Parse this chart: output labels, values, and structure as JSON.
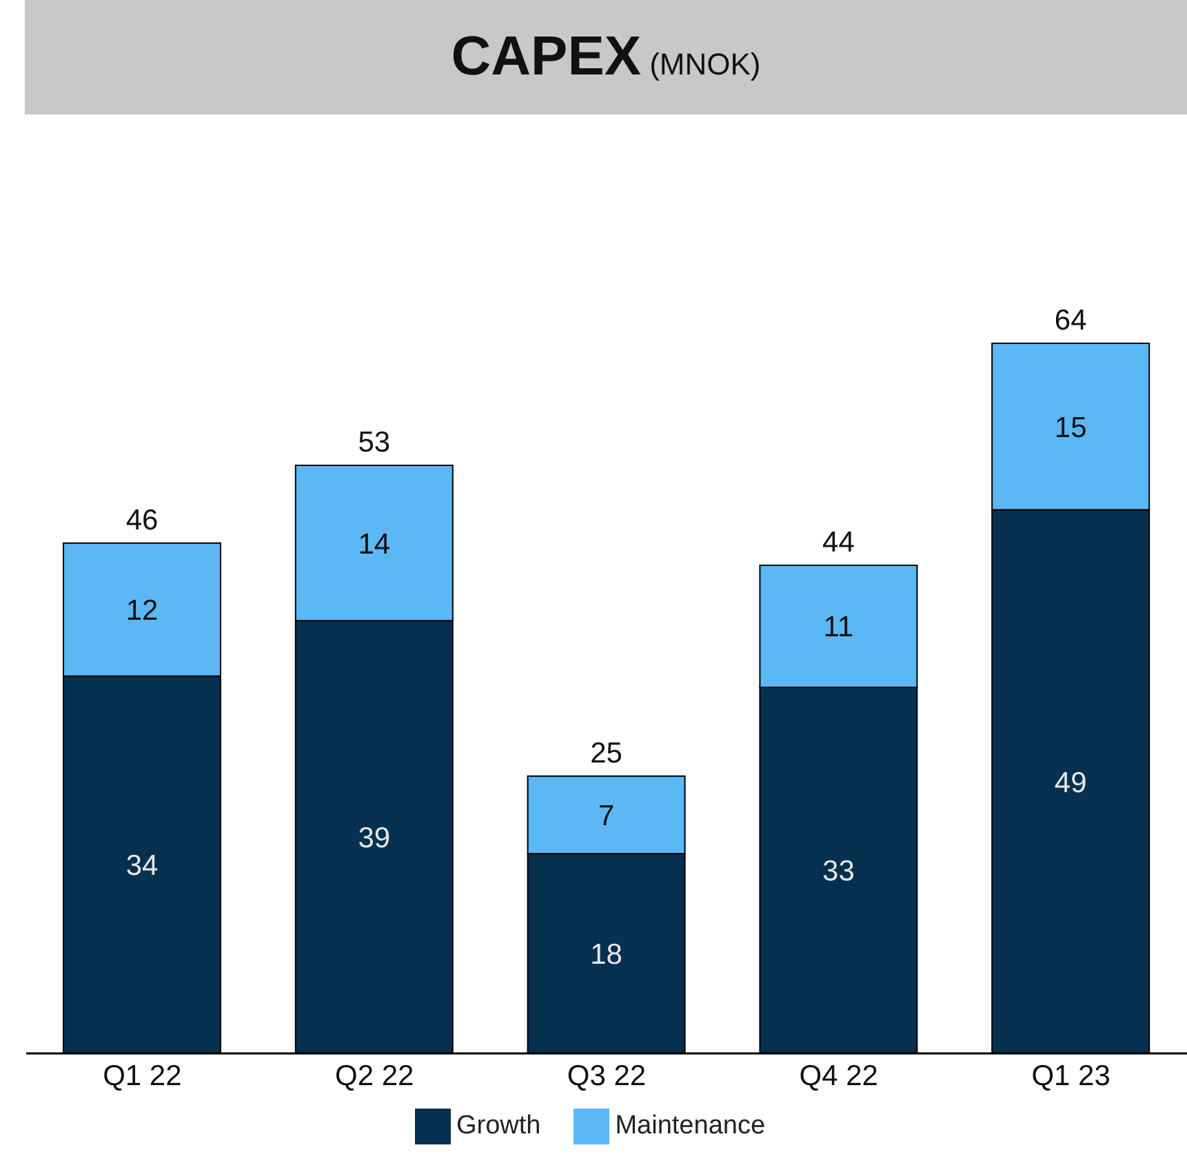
{
  "chart_data": {
    "type": "bar",
    "title": "CAPEX",
    "subtitle": "(MNOK)",
    "categories": [
      "Q1 22",
      "Q2 22",
      "Q3 22",
      "Q4 22",
      "Q1 23"
    ],
    "stacked": true,
    "data_labels": true,
    "legend": "bottom",
    "series": [
      {
        "name": "Growth",
        "color": "#05304f",
        "values": [
          34,
          39,
          18,
          33,
          49
        ]
      },
      {
        "name": "Maintenance",
        "color": "#5bb8f5",
        "values": [
          12,
          14,
          7,
          11,
          15
        ]
      }
    ],
    "totals": [
      "46",
      "53",
      "25",
      "44",
      "64"
    ]
  }
}
